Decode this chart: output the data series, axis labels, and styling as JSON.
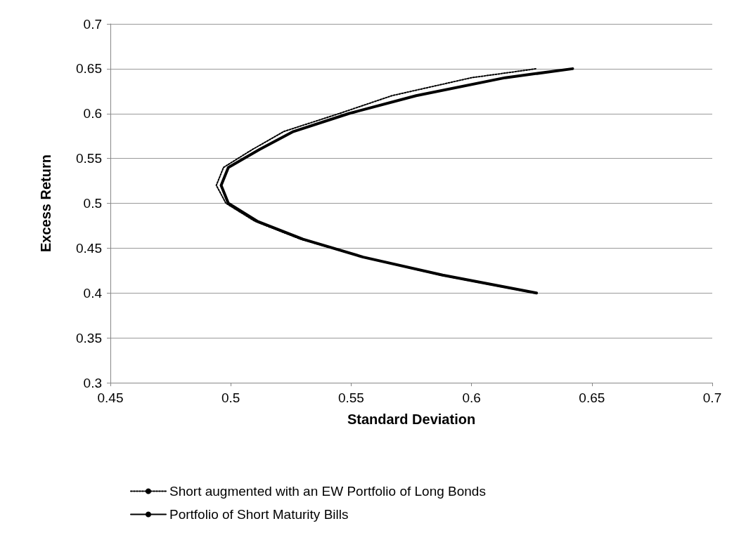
{
  "chart_data": {
    "type": "line",
    "xlabel": "Standard Deviation",
    "ylabel": "Excess Return",
    "xlim": [
      0.45,
      0.7
    ],
    "xticks": [
      0.45,
      0.5,
      0.55,
      0.6,
      0.65,
      0.7
    ],
    "ylim": [
      0.3,
      0.7
    ],
    "yticks": [
      0.3,
      0.35,
      0.4,
      0.45,
      0.5,
      0.55,
      0.6,
      0.65,
      0.7
    ],
    "grid": "y",
    "legend": "bottom",
    "marker": "none",
    "series": [
      {
        "name": "Short augmented with an EW Portfolio of Long Bonds",
        "color": "#000000",
        "line_style": "dotted",
        "x": [
          0.626,
          0.587,
          0.555,
          0.529,
          0.51,
          0.498,
          0.494,
          0.497,
          0.509,
          0.522,
          0.545,
          0.567,
          0.6,
          0.627
        ],
        "values": [
          0.4,
          0.42,
          0.44,
          0.46,
          0.48,
          0.5,
          0.52,
          0.54,
          0.56,
          0.58,
          0.6,
          0.62,
          0.64,
          0.65
        ]
      },
      {
        "name": "Portfolio of Short Maturity Bills",
        "color": "#000000",
        "line_style": "solid",
        "x": [
          0.627,
          0.588,
          0.555,
          0.53,
          0.511,
          0.499,
          0.496,
          0.499,
          0.512,
          0.526,
          0.549,
          0.577,
          0.614,
          0.642
        ],
        "values": [
          0.4,
          0.42,
          0.44,
          0.46,
          0.48,
          0.5,
          0.52,
          0.54,
          0.56,
          0.58,
          0.6,
          0.62,
          0.64,
          0.65
        ]
      }
    ]
  }
}
